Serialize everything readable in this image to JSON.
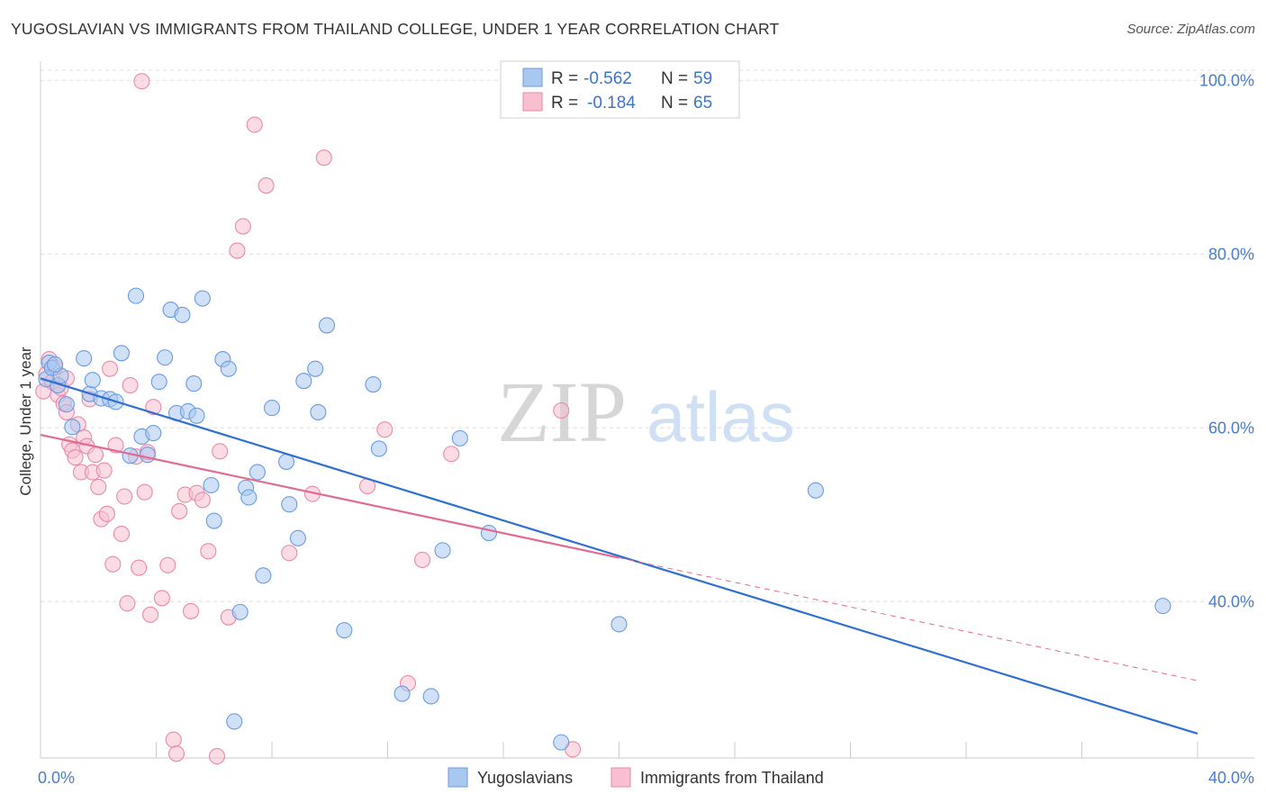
{
  "title": "YUGOSLAVIAN VS IMMIGRANTS FROM THAILAND COLLEGE, UNDER 1 YEAR CORRELATION CHART",
  "source": "Source: ZipAtlas.com",
  "watermark": {
    "zip": "ZIP",
    "atlas": "atlas"
  },
  "colors": {
    "blue_fill": "#a9c8f0",
    "blue_stroke": "#6a9be0",
    "blue_line": "#2e6fd0",
    "pink_fill": "#f7bfd0",
    "pink_stroke": "#e88aa8",
    "pink_line": "#e06a94",
    "grid": "#dddddd",
    "axis_label": "#4a7cc9"
  },
  "legend": {
    "rows": [
      {
        "r_label": "R =",
        "r_value": "-0.562",
        "n_label": "N =",
        "n_value": "59"
      },
      {
        "r_label": "R =",
        "r_value": "-0.184",
        "n_label": "N =",
        "n_value": "65"
      }
    ]
  },
  "bottom_legend": [
    "Yugoslavians",
    "Immigrants from Thailand"
  ],
  "chart_data": {
    "type": "scatter",
    "title": "YUGOSLAVIAN VS IMMIGRANTS FROM THAILAND COLLEGE, UNDER 1 YEAR CORRELATION CHART",
    "xlabel": "",
    "ylabel": "College, Under 1 year",
    "xlim": [
      0,
      40
    ],
    "ylim": [
      22,
      102
    ],
    "x_ticks": [
      "0.0%",
      "40.0%"
    ],
    "y_ticks": [
      {
        "value": 100,
        "label": "100.0%"
      },
      {
        "value": 80,
        "label": "80.0%"
      },
      {
        "value": 60,
        "label": "60.0%"
      },
      {
        "value": 40,
        "label": "40.0%"
      }
    ],
    "grid": true,
    "legend_placement": "top-center",
    "series": [
      {
        "name": "Yugoslavians",
        "r": -0.562,
        "n": 59,
        "trend": {
          "x0": 0.0,
          "y0": 65.7,
          "x1": 40.0,
          "y1": 24.8,
          "dashed_from": null
        },
        "points": [
          [
            0.2,
            65.6
          ],
          [
            0.3,
            67.5
          ],
          [
            0.4,
            66.9
          ],
          [
            0.6,
            64.9
          ],
          [
            0.7,
            66.0
          ],
          [
            0.9,
            62.7
          ],
          [
            1.1,
            60.1
          ],
          [
            1.5,
            68.0
          ],
          [
            1.7,
            63.9
          ],
          [
            1.8,
            65.5
          ],
          [
            2.1,
            63.4
          ],
          [
            2.4,
            63.3
          ],
          [
            2.6,
            63.0
          ],
          [
            2.8,
            68.6
          ],
          [
            3.1,
            56.8
          ],
          [
            3.3,
            75.2
          ],
          [
            3.5,
            59.0
          ],
          [
            3.7,
            56.9
          ],
          [
            3.9,
            59.4
          ],
          [
            4.1,
            65.3
          ],
          [
            4.3,
            68.1
          ],
          [
            4.5,
            73.6
          ],
          [
            4.7,
            61.7
          ],
          [
            4.9,
            73.0
          ],
          [
            5.1,
            61.9
          ],
          [
            5.3,
            65.1
          ],
          [
            5.4,
            61.4
          ],
          [
            5.6,
            74.9
          ],
          [
            5.9,
            53.4
          ],
          [
            6.0,
            49.3
          ],
          [
            6.3,
            67.9
          ],
          [
            6.5,
            66.8
          ],
          [
            6.9,
            38.8
          ],
          [
            7.1,
            53.1
          ],
          [
            7.2,
            52.0
          ],
          [
            7.5,
            54.9
          ],
          [
            7.7,
            43.0
          ],
          [
            8.0,
            62.3
          ],
          [
            8.5,
            56.1
          ],
          [
            8.6,
            51.2
          ],
          [
            8.9,
            47.3
          ],
          [
            9.1,
            65.4
          ],
          [
            9.5,
            66.8
          ],
          [
            9.6,
            61.8
          ],
          [
            9.9,
            71.8
          ],
          [
            10.5,
            36.7
          ],
          [
            11.5,
            65.0
          ],
          [
            11.7,
            57.6
          ],
          [
            12.5,
            29.4
          ],
          [
            13.5,
            29.1
          ],
          [
            13.9,
            45.9
          ],
          [
            14.5,
            58.8
          ],
          [
            15.5,
            47.9
          ],
          [
            18.0,
            23.8
          ],
          [
            20.0,
            37.4
          ],
          [
            26.8,
            52.8
          ],
          [
            38.8,
            39.5
          ],
          [
            6.7,
            26.2
          ],
          [
            0.5,
            67.3
          ]
        ]
      },
      {
        "name": "Immigrants from Thailand",
        "r": -0.184,
        "n": 65,
        "trend": {
          "x0": 0.0,
          "y0": 59.2,
          "x1": 40.0,
          "y1": 30.9,
          "dashed_from": 20.0
        },
        "points": [
          [
            0.1,
            64.2
          ],
          [
            0.2,
            66.2
          ],
          [
            0.3,
            67.9
          ],
          [
            0.4,
            65.3
          ],
          [
            0.5,
            67.0
          ],
          [
            0.6,
            63.8
          ],
          [
            0.7,
            64.6
          ],
          [
            0.8,
            62.8
          ],
          [
            0.9,
            61.8
          ],
          [
            1.0,
            58.1
          ],
          [
            1.1,
            57.4
          ],
          [
            1.2,
            56.6
          ],
          [
            1.3,
            60.4
          ],
          [
            1.4,
            54.9
          ],
          [
            1.5,
            58.9
          ],
          [
            1.6,
            57.9
          ],
          [
            1.7,
            63.3
          ],
          [
            1.8,
            54.9
          ],
          [
            1.9,
            56.9
          ],
          [
            2.0,
            53.2
          ],
          [
            2.1,
            49.5
          ],
          [
            2.2,
            55.1
          ],
          [
            2.3,
            50.1
          ],
          [
            2.4,
            66.8
          ],
          [
            2.5,
            44.3
          ],
          [
            2.6,
            58.0
          ],
          [
            2.8,
            47.8
          ],
          [
            2.9,
            52.1
          ],
          [
            3.0,
            39.8
          ],
          [
            3.1,
            64.9
          ],
          [
            3.3,
            56.7
          ],
          [
            3.4,
            43.9
          ],
          [
            3.6,
            52.6
          ],
          [
            3.7,
            57.2
          ],
          [
            3.8,
            38.5
          ],
          [
            3.9,
            62.4
          ],
          [
            4.2,
            40.4
          ],
          [
            4.4,
            44.2
          ],
          [
            4.6,
            24.1
          ],
          [
            4.7,
            22.5
          ],
          [
            4.8,
            50.4
          ],
          [
            5.0,
            52.3
          ],
          [
            5.2,
            38.9
          ],
          [
            5.4,
            52.5
          ],
          [
            5.6,
            51.7
          ],
          [
            5.8,
            45.8
          ],
          [
            6.1,
            22.2
          ],
          [
            6.2,
            57.3
          ],
          [
            6.5,
            38.2
          ],
          [
            6.8,
            80.4
          ],
          [
            7.4,
            94.9
          ],
          [
            7.0,
            83.2
          ],
          [
            7.8,
            87.9
          ],
          [
            8.6,
            45.6
          ],
          [
            9.4,
            52.4
          ],
          [
            9.8,
            91.1
          ],
          [
            11.3,
            53.3
          ],
          [
            11.9,
            59.8
          ],
          [
            12.7,
            30.6
          ],
          [
            13.2,
            44.8
          ],
          [
            14.2,
            57.0
          ],
          [
            18.0,
            62.0
          ],
          [
            18.4,
            23.0
          ],
          [
            3.5,
            99.9
          ],
          [
            0.9,
            65.7
          ]
        ]
      }
    ]
  }
}
